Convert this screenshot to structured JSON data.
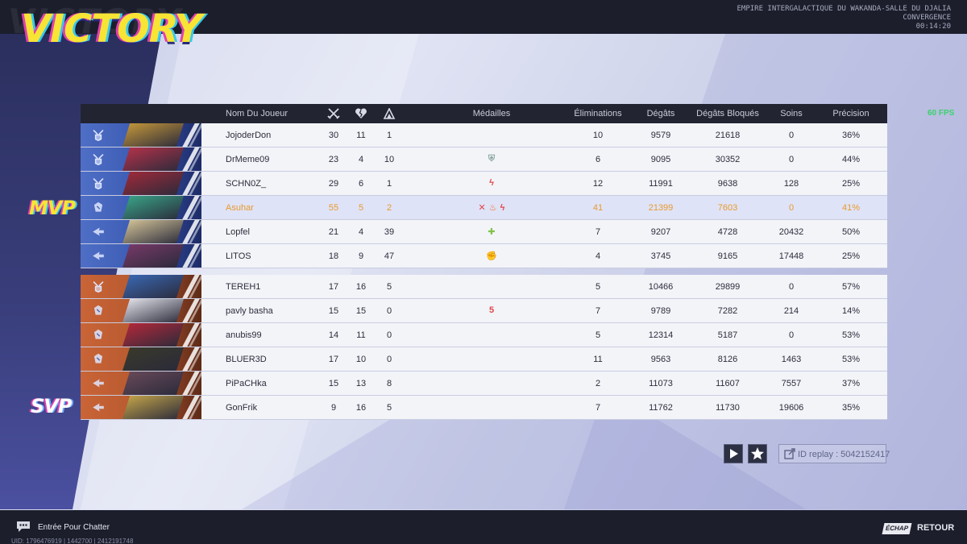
{
  "header": {
    "title": "VICTORY",
    "map_line1": "EMPIRE INTERGALACTIQUE DU WAKANDA-SALLE DU DJALIA",
    "map_line2": "CONVERGENCE",
    "timer": "00:14:20"
  },
  "fps": "60 FPS",
  "awards": {
    "mvp": "MVP",
    "svp": "SVP"
  },
  "colors": {
    "ally": "#3d5cb4",
    "enemy": "#b85a30",
    "highlight": "#e89a2e",
    "victory": "#f7e435"
  },
  "columns": {
    "name": "Nom Du Joueur",
    "kills_icon": "crossed-swords-icon",
    "deaths_icon": "broken-heart-icon",
    "assists_icon": "assist-icon",
    "medals": "Médailles",
    "eliminations": "Éliminations",
    "damage": "Dégâts",
    "blocked": "Dégâts Bloqués",
    "healing": "Soins",
    "accuracy": "Précision"
  },
  "ally_team": [
    {
      "name": "JojoderDon",
      "k": "30",
      "d": "11",
      "a": "1",
      "medals": [],
      "elim": "10",
      "dmg": "9579",
      "blk": "21618",
      "heal": "0",
      "acc": "36%",
      "role": "vanguard",
      "face": "#c99a3a"
    },
    {
      "name": "DrMeme09",
      "k": "23",
      "d": "4",
      "a": "10",
      "medals": [
        {
          "glyph": "⛨",
          "color": "#8aa6a0"
        }
      ],
      "elim": "6",
      "dmg": "9095",
      "blk": "30352",
      "heal": "0",
      "acc": "44%",
      "role": "vanguard",
      "face": "#b8324a"
    },
    {
      "name": "SCHN0Z_",
      "k": "29",
      "d": "6",
      "a": "1",
      "medals": [
        {
          "glyph": "ϟ",
          "color": "#e04848"
        }
      ],
      "elim": "12",
      "dmg": "11991",
      "blk": "9638",
      "heal": "128",
      "acc": "25%",
      "role": "vanguard",
      "face": "#a32a3a"
    },
    {
      "name": "Asuhar",
      "k": "55",
      "d": "5",
      "a": "2",
      "medals": [
        {
          "glyph": "✕",
          "color": "#e04848"
        },
        {
          "glyph": "♨",
          "color": "#ea6a2a"
        },
        {
          "glyph": "ϟ",
          "color": "#e04848"
        }
      ],
      "elim": "41",
      "dmg": "21399",
      "blk": "7603",
      "heal": "0",
      "acc": "41%",
      "role": "duelist",
      "face": "#3aa88a",
      "highlight": true
    },
    {
      "name": "Lopfel",
      "k": "21",
      "d": "4",
      "a": "39",
      "medals": [
        {
          "glyph": "✚",
          "color": "#7fc24a"
        }
      ],
      "elim": "7",
      "dmg": "9207",
      "blk": "4728",
      "heal": "20432",
      "acc": "50%",
      "role": "strategist",
      "face": "#d8c89a"
    },
    {
      "name": "LITOS",
      "k": "18",
      "d": "9",
      "a": "47",
      "medals": [
        {
          "glyph": "✊",
          "color": "#d4b84a"
        }
      ],
      "elim": "4",
      "dmg": "3745",
      "blk": "9165",
      "heal": "17448",
      "acc": "25%",
      "role": "strategist",
      "face": "#7a3a6a"
    }
  ],
  "enemy_team": [
    {
      "name": "TEREH1",
      "k": "17",
      "d": "16",
      "a": "5",
      "medals": [],
      "elim": "5",
      "dmg": "10466",
      "blk": "29899",
      "heal": "0",
      "acc": "57%",
      "role": "vanguard",
      "face": "#3a6ab8"
    },
    {
      "name": "pavly basha",
      "k": "15",
      "d": "15",
      "a": "0",
      "medals": [
        {
          "glyph": "5",
          "color": "#e04848"
        }
      ],
      "elim": "7",
      "dmg": "9789",
      "blk": "7282",
      "heal": "214",
      "acc": "14%",
      "role": "duelist",
      "face": "#e8e8f0"
    },
    {
      "name": "anubis99",
      "k": "14",
      "d": "11",
      "a": "0",
      "medals": [],
      "elim": "5",
      "dmg": "12314",
      "blk": "5187",
      "heal": "0",
      "acc": "53%",
      "role": "duelist",
      "face": "#b8283a"
    },
    {
      "name": "BLUER3D",
      "k": "17",
      "d": "10",
      "a": "0",
      "medals": [],
      "elim": "11",
      "dmg": "9563",
      "blk": "8126",
      "heal": "1463",
      "acc": "53%",
      "role": "duelist",
      "face": "#3a3a2a"
    },
    {
      "name": "PiPaCHka",
      "k": "15",
      "d": "13",
      "a": "8",
      "medals": [],
      "elim": "2",
      "dmg": "11073",
      "blk": "11607",
      "heal": "7557",
      "acc": "37%",
      "role": "strategist",
      "face": "#6a4a5a"
    },
    {
      "name": "GonFrik",
      "k": "9",
      "d": "16",
      "a": "5",
      "medals": [],
      "elim": "7",
      "dmg": "11762",
      "blk": "11730",
      "heal": "19606",
      "acc": "35%",
      "role": "strategist",
      "face": "#c8a84a"
    }
  ],
  "replay": {
    "label": "ID replay : 5042152417"
  },
  "footer": {
    "chat": "Entrée Pour Chatter",
    "uid": "UID: 1796476919 | 1442700 | 2412191748",
    "esc_key": "ÉCHAP",
    "back": "RETOUR"
  }
}
